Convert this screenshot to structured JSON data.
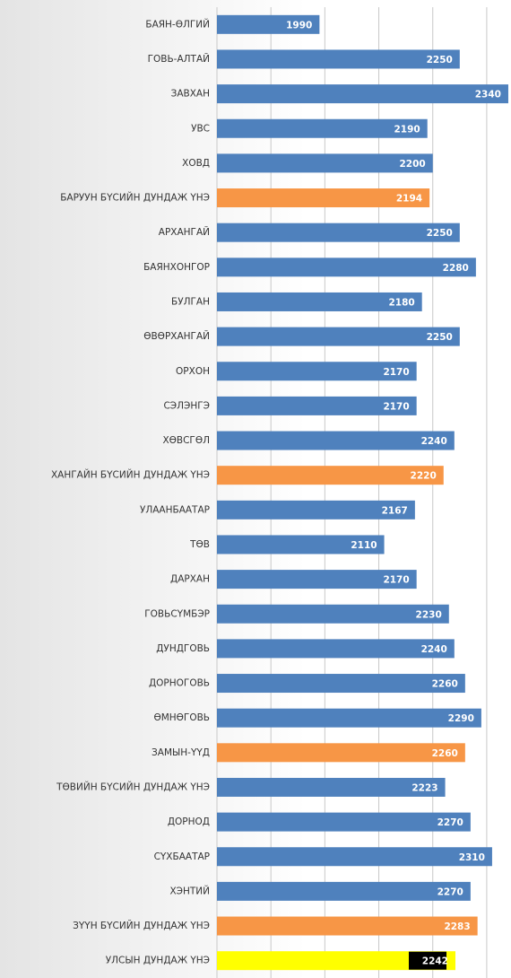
{
  "chart_data": {
    "type": "barh",
    "categories": [
      "БАЯН-ӨЛГИЙ",
      "ГОВЬ-АЛТАЙ",
      "ЗАВХАН",
      "УВС",
      "ХОВД",
      "БАРУУН БҮСИЙН ДУНДАЖ ҮНЭ",
      "АРХАНГАЙ",
      "БАЯНХОНГОР",
      "БУЛГАН",
      "ӨВӨРХАНГАЙ",
      "ОРХОН",
      "СЭЛЭНГЭ",
      "ХӨВСГӨЛ",
      "ХАНГАЙН БҮСИЙН ДУНДАЖ ҮНЭ",
      "УЛААНБААТАР",
      "ТӨВ",
      "ДАРХАН",
      "ГОВЬСҮМБЭР",
      "ДУНДГОВЬ",
      "ДОРНОГОВЬ",
      "ӨМНӨГОВЬ",
      "ЗАМЫН-ҮҮД",
      "ТӨВИЙН БҮСИЙН ДУНДАЖ ҮНЭ",
      "ДОРНОД",
      "СҮХБААТАР",
      "ХЭНТИЙ",
      "ЗҮҮН БҮСИЙН ДУНДАЖ ҮНЭ",
      "УЛСЫН ДУНДАЖ ҮНЭ"
    ],
    "values": [
      1990,
      2250,
      2340,
      2190,
      2200,
      2194,
      2250,
      2280,
      2180,
      2250,
      2170,
      2170,
      2240,
      2220,
      2167,
      2110,
      2170,
      2230,
      2240,
      2260,
      2290,
      2260,
      2223,
      2270,
      2310,
      2270,
      2283,
      2242
    ],
    "colors": [
      "#4f81bd",
      "#4f81bd",
      "#4f81bd",
      "#4f81bd",
      "#4f81bd",
      "#f79646",
      "#4f81bd",
      "#4f81bd",
      "#4f81bd",
      "#4f81bd",
      "#4f81bd",
      "#4f81bd",
      "#4f81bd",
      "#f79646",
      "#4f81bd",
      "#4f81bd",
      "#4f81bd",
      "#4f81bd",
      "#4f81bd",
      "#4f81bd",
      "#4f81bd",
      "#f79646",
      "#4f81bd",
      "#4f81bd",
      "#4f81bd",
      "#4f81bd",
      "#f79646",
      "#ffff00"
    ],
    "xlim": [
      1800,
      2345
    ],
    "xticks": [
      1800,
      1900,
      2000,
      2100,
      2200,
      2300
    ],
    "grid": true
  }
}
